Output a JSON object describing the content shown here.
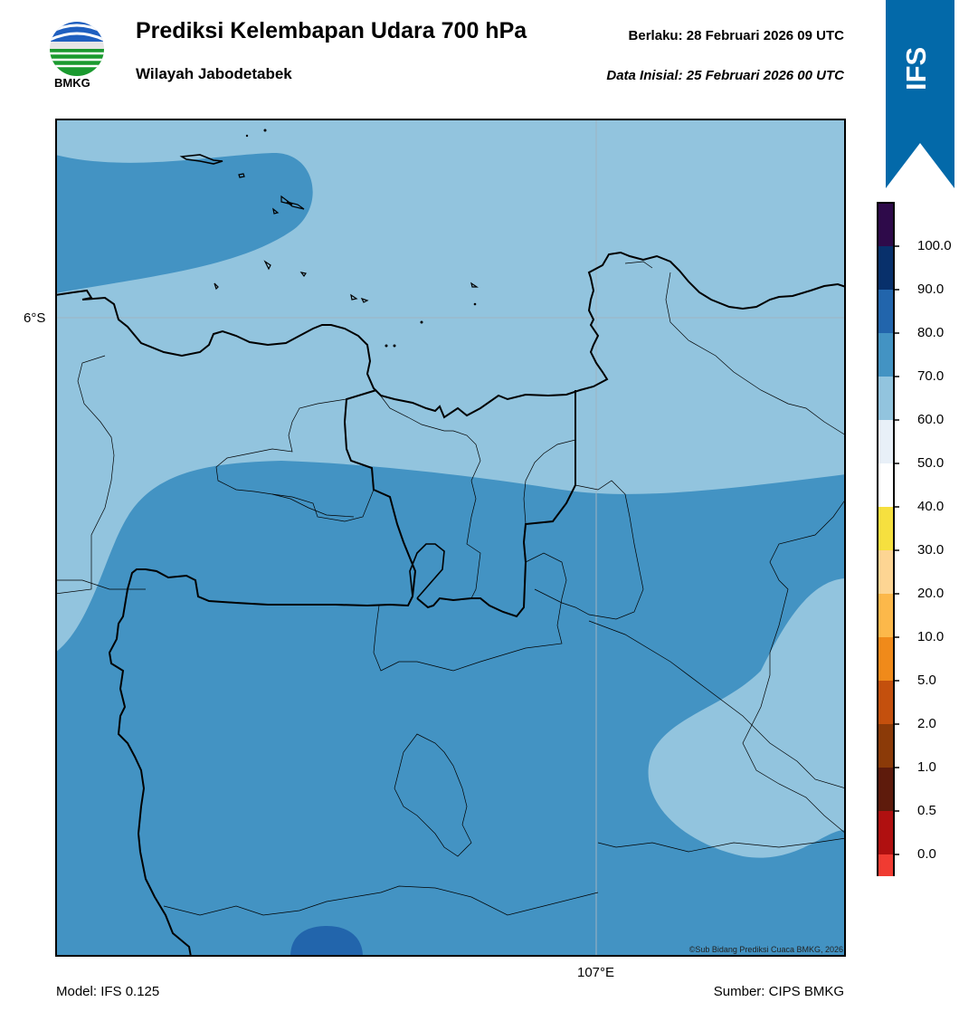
{
  "header": {
    "title": "Prediksi Kelembapan Udara 700 hPa",
    "subtitle": "Wilayah Jabodetabek",
    "valid_label": "Berlaku:  28 Februari 2026 09 UTC",
    "initial_label": "Data Inisial:  25 Februari 2026 00 UTC"
  },
  "logo": {
    "icon": "bmkg-logo-icon",
    "text": "BMKG"
  },
  "badge": {
    "text": "IFS",
    "color": "#0369a9"
  },
  "map": {
    "lat_label": "6°S",
    "lon_label": "107°E",
    "copyright": "©Sub Bidang Prediksi Cuaca BMKG, 2026",
    "colors": {
      "60-70": "#92c4de",
      "70-80": "#4393c3",
      "80-90": "#2265ac"
    }
  },
  "colorbar": {
    "ticks": [
      "100.0",
      "90.0",
      "80.0",
      "70.0",
      "60.0",
      "50.0",
      "40.0",
      "30.0",
      "20.0",
      "10.0",
      "5.0",
      "2.0",
      "1.0",
      "0.5",
      "0.0"
    ],
    "colors": [
      "#f03b32",
      "#b01010",
      "#5e1b0c",
      "#8b3a08",
      "#c4500d",
      "#f08a1a",
      "#fcb84a",
      "#fdd593",
      "#f6e03f",
      "#ffffff",
      "#e8f0f8",
      "#92c4de",
      "#4393c3",
      "#2265ac",
      "#08306b",
      "#2e0a4a"
    ]
  },
  "footer": {
    "model": "Model: IFS 0.125",
    "source": "Sumber: CIPS BMKG"
  }
}
